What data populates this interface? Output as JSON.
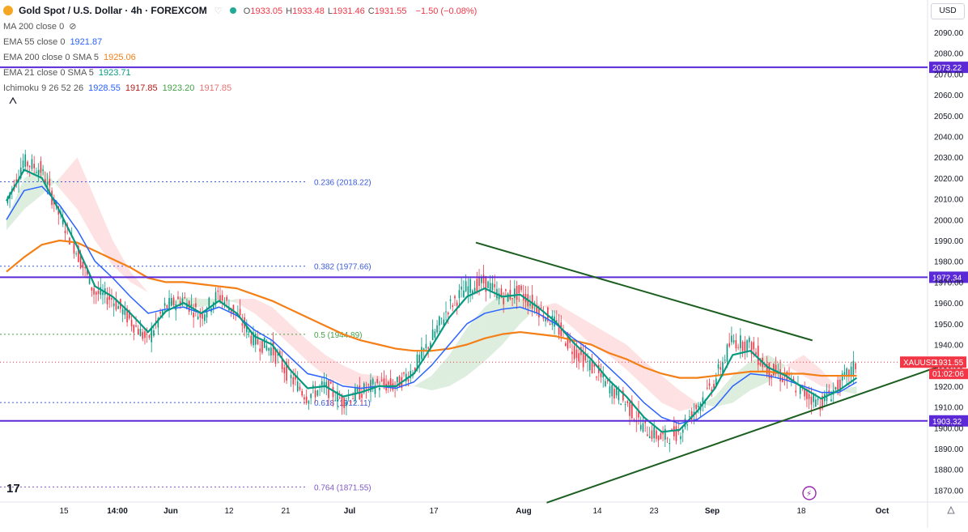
{
  "header": {
    "title": "Gold Spot / U.S. Dollar · 4h · FOREXCOM",
    "ohlc": [
      {
        "k": "O",
        "v": "1933.05"
      },
      {
        "k": "H",
        "v": "1933.48"
      },
      {
        "k": "L",
        "v": "1931.46"
      },
      {
        "k": "C",
        "v": "1931.55"
      }
    ],
    "change": "−1.50 (−0.08%)",
    "currency": "USD"
  },
  "indicators": [
    {
      "label": "MA 200 close 0",
      "values": []
    },
    {
      "label": "EMA 55 close 0",
      "values": [
        {
          "v": "1921.87",
          "color": "#2962ff"
        }
      ]
    },
    {
      "label": "EMA 200 close 0 SMA 5",
      "values": [
        {
          "v": "1925.06",
          "color": "#f57f17"
        }
      ]
    },
    {
      "label": "EMA 21 close 0 SMA 5",
      "values": [
        {
          "v": "1923.71",
          "color": "#089981"
        }
      ]
    },
    {
      "label": "Ichimoku 9 26 52 26",
      "values": [
        {
          "v": "1928.55",
          "color": "#2962ff"
        },
        {
          "v": "1917.85",
          "color": "#b71c1c"
        },
        {
          "v": "1923.20",
          "color": "#43a047"
        },
        {
          "v": "1917.85",
          "color": "#e57373"
        }
      ]
    }
  ],
  "colors": {
    "up": "#089981",
    "down": "#f23645",
    "ema21": "#089981",
    "ema55": "#2962ff",
    "ema200": "#f57f17",
    "level": "#5b2ad6",
    "trend": "#1b5e20",
    "fib": "#3b5bdb"
  },
  "chart_data": {
    "type": "line",
    "symbol": "XAUUSD",
    "current_price": "1931.55",
    "countdown": "01:02:06",
    "ylim": [
      1862,
      2100
    ],
    "y_ticks": [
      "2090.00",
      "2080.00",
      "2070.00",
      "2060.00",
      "2050.00",
      "2040.00",
      "2030.00",
      "2020.00",
      "2010.00",
      "2000.00",
      "1990.00",
      "1980.00",
      "1970.00",
      "1960.00",
      "1950.00",
      "1940.00",
      "1930.00",
      "1920.00",
      "1910.00",
      "1900.00",
      "1890.00",
      "1880.00",
      "1870.00"
    ],
    "x_ticks": [
      "15",
      "14:00",
      "Jun",
      "12",
      "21",
      "Jul",
      "17",
      "Aug",
      "14",
      "23",
      "Sep",
      "18",
      "Oct"
    ],
    "horizontal_levels": [
      "2073.22",
      "1972.34",
      "1903.32"
    ],
    "fib_levels": [
      {
        "ratio": "0.236",
        "label": "0.236 (2018.22)",
        "value": 2018.22
      },
      {
        "ratio": "0.382",
        "label": "0.382 (1977.66)",
        "value": 1977.66
      },
      {
        "ratio": "0.5",
        "label": "0.5 (1944.89)",
        "value": 1944.89
      },
      {
        "ratio": "0.618",
        "label": "0.618 (1912.11)",
        "value": 1912.11
      },
      {
        "ratio": "0.764",
        "label": "0.764 (1871.55)",
        "value": 1871.55
      }
    ],
    "close_series": [
      {
        "x": 0,
        "y": 2008
      },
      {
        "x": 1,
        "y": 2028
      },
      {
        "x": 2,
        "y": 2024
      },
      {
        "x": 3,
        "y": 2003
      },
      {
        "x": 4,
        "y": 1985
      },
      {
        "x": 5,
        "y": 1965
      },
      {
        "x": 6,
        "y": 1962
      },
      {
        "x": 7,
        "y": 1952
      },
      {
        "x": 8,
        "y": 1942
      },
      {
        "x": 9,
        "y": 1958
      },
      {
        "x": 10,
        "y": 1962
      },
      {
        "x": 11,
        "y": 1954
      },
      {
        "x": 12,
        "y": 1964
      },
      {
        "x": 13,
        "y": 1955
      },
      {
        "x": 14,
        "y": 1942
      },
      {
        "x": 15,
        "y": 1938
      },
      {
        "x": 16,
        "y": 1925
      },
      {
        "x": 17,
        "y": 1915
      },
      {
        "x": 18,
        "y": 1920
      },
      {
        "x": 19,
        "y": 1913
      },
      {
        "x": 20,
        "y": 1917
      },
      {
        "x": 21,
        "y": 1921
      },
      {
        "x": 22,
        "y": 1920
      },
      {
        "x": 23,
        "y": 1928
      },
      {
        "x": 24,
        "y": 1942
      },
      {
        "x": 25,
        "y": 1958
      },
      {
        "x": 26,
        "y": 1967
      },
      {
        "x": 27,
        "y": 1970
      },
      {
        "x": 28,
        "y": 1963
      },
      {
        "x": 29,
        "y": 1965
      },
      {
        "x": 30,
        "y": 1958
      },
      {
        "x": 31,
        "y": 1950
      },
      {
        "x": 32,
        "y": 1938
      },
      {
        "x": 33,
        "y": 1930
      },
      {
        "x": 34,
        "y": 1920
      },
      {
        "x": 35,
        "y": 1912
      },
      {
        "x": 36,
        "y": 1900
      },
      {
        "x": 37,
        "y": 1895
      },
      {
        "x": 38,
        "y": 1898
      },
      {
        "x": 39,
        "y": 1910
      },
      {
        "x": 40,
        "y": 1922
      },
      {
        "x": 41,
        "y": 1942
      },
      {
        "x": 42,
        "y": 1940
      },
      {
        "x": 43,
        "y": 1928
      },
      {
        "x": 44,
        "y": 1924
      },
      {
        "x": 45,
        "y": 1917
      },
      {
        "x": 46,
        "y": 1912
      },
      {
        "x": 47,
        "y": 1920
      },
      {
        "x": 48,
        "y": 1930
      }
    ],
    "ema21_series": [
      2009,
      2024,
      2020,
      2004,
      1987,
      1968,
      1963,
      1955,
      1946,
      1956,
      1960,
      1955,
      1961,
      1955,
      1944,
      1940,
      1928,
      1919,
      1920,
      1915,
      1917,
      1920,
      1920,
      1926,
      1939,
      1953,
      1963,
      1967,
      1963,
      1964,
      1958,
      1951,
      1941,
      1933,
      1923,
      1915,
      1905,
      1898,
      1899,
      1908,
      1919,
      1935,
      1937,
      1929,
      1925,
      1919,
      1914,
      1918,
      1924
    ],
    "ema55_series": [
      2000,
      2014,
      2016,
      2007,
      1995,
      1980,
      1972,
      1963,
      1955,
      1957,
      1958,
      1955,
      1958,
      1954,
      1947,
      1942,
      1934,
      1926,
      1924,
      1920,
      1919,
      1920,
      1919,
      1922,
      1930,
      1940,
      1950,
      1955,
      1957,
      1958,
      1955,
      1950,
      1943,
      1937,
      1929,
      1921,
      1912,
      1905,
      1902,
      1904,
      1910,
      1920,
      1926,
      1925,
      1923,
      1920,
      1917,
      1917,
      1922
    ],
    "ema200_series": [
      1975,
      1982,
      1988,
      1990,
      1989,
      1985,
      1981,
      1977,
      1972,
      1970,
      1970,
      1969,
      1968,
      1967,
      1964,
      1961,
      1957,
      1953,
      1949,
      1945,
      1942,
      1940,
      1938,
      1937,
      1937,
      1938,
      1940,
      1943,
      1945,
      1946,
      1945,
      1944,
      1942,
      1940,
      1936,
      1933,
      1929,
      1926,
      1924,
      1924,
      1925,
      1926,
      1927,
      1927,
      1926,
      1926,
      1925,
      1925,
      1925
    ],
    "cloud_a": [
      2000,
      2020,
      2025,
      2015,
      2005,
      1990,
      1978,
      1970,
      1965,
      1960,
      1963,
      1962,
      1962,
      1960,
      1955,
      1948,
      1940,
      1932,
      1925,
      1921,
      1918,
      1920,
      1920,
      1920,
      1925,
      1935,
      1948,
      1958,
      1965,
      1962,
      1960,
      1955,
      1948,
      1940,
      1935,
      1928,
      1920,
      1912,
      1908,
      1910,
      1915,
      1925,
      1932,
      1935,
      1930,
      1925,
      1920,
      1918,
      1920
    ],
    "cloud_b": [
      1995,
      2005,
      2012,
      2020,
      2030,
      2010,
      1990,
      1975,
      1965,
      1960,
      1958,
      1958,
      1960,
      1962,
      1962,
      1958,
      1950,
      1942,
      1935,
      1930,
      1926,
      1925,
      1922,
      1920,
      1918,
      1920,
      1925,
      1932,
      1940,
      1950,
      1958,
      1960,
      1955,
      1950,
      1945,
      1940,
      1932,
      1925,
      1918,
      1912,
      1910,
      1912,
      1918,
      1922,
      1930,
      1935,
      1928,
      1918,
      1916
    ],
    "trendlines": [
      {
        "from": {
          "x": 26.5,
          "y": 1989
        },
        "to": {
          "x": 45.5,
          "y": 1942
        }
      },
      {
        "from": {
          "x": 30.5,
          "y": 1864
        },
        "to": {
          "x": 52.5,
          "y": 1929
        }
      }
    ]
  }
}
